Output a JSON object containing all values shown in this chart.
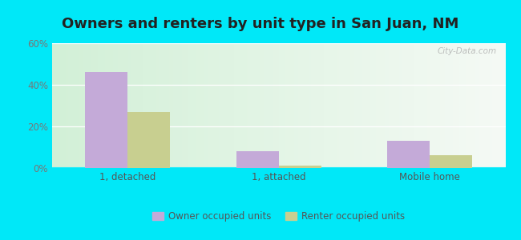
{
  "title": "Owners and renters by unit type in San Juan, NM",
  "categories": [
    "1, detached",
    "1, attached",
    "Mobile home"
  ],
  "owner_values": [
    46,
    8,
    13
  ],
  "renter_values": [
    27,
    1,
    6
  ],
  "owner_color": "#c4aad8",
  "renter_color": "#c8cf90",
  "ylim": [
    0,
    60
  ],
  "yticks": [
    0,
    20,
    40,
    60
  ],
  "ytick_labels": [
    "0%",
    "20%",
    "40%",
    "60%"
  ],
  "outer_background": "#00e8f8",
  "bar_width": 0.28,
  "legend_owner": "Owner occupied units",
  "legend_renter": "Renter occupied units",
  "title_fontsize": 13,
  "title_color": "#222222",
  "watermark": "City-Data.com",
  "tick_color": "#777777",
  "label_color": "#555555"
}
